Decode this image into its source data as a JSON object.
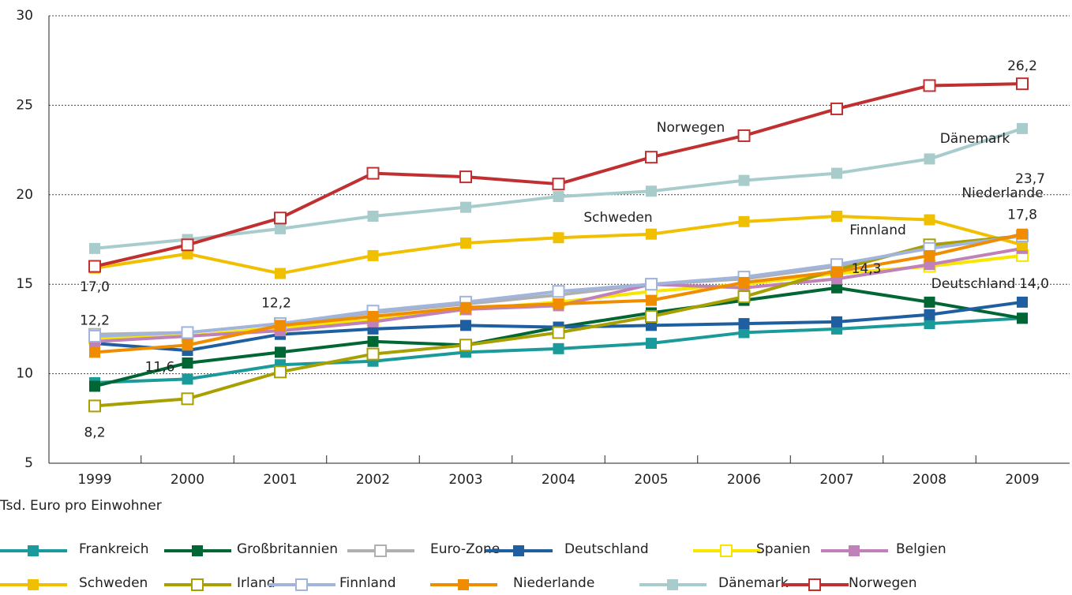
{
  "chart_data": {
    "type": "line",
    "categories": [
      "1999",
      "2000",
      "2001",
      "2002",
      "2003",
      "2004",
      "2005",
      "2006",
      "2007",
      "2008",
      "2009"
    ],
    "ylim": [
      5,
      30
    ],
    "yticks": [
      5,
      10,
      15,
      20,
      25,
      30
    ],
    "grid": true,
    "y_unit_label": "Tsd. Euro pro Einwohner",
    "annotations": [
      "Norwegen",
      "Dänemark",
      "Schweden",
      "Finnland",
      "Niederlande",
      "Deutschland"
    ],
    "series": [
      {
        "name": "Frankreich",
        "color": "#1a9a9a",
        "marker": "filled",
        "values": [
          9.5,
          9.7,
          10.5,
          10.7,
          11.2,
          11.4,
          11.7,
          12.3,
          12.5,
          12.8,
          13.1
        ]
      },
      {
        "name": "Großbritannien",
        "color": "#006633",
        "marker": "filled",
        "values": [
          9.3,
          10.6,
          11.2,
          11.8,
          11.6,
          12.6,
          13.4,
          14.1,
          14.8,
          14.0,
          13.1
        ]
      },
      {
        "name": "Euro-Zone",
        "color": "#b0b0b0",
        "marker": "hollow",
        "values": [
          12.2,
          12.3,
          12.8,
          13.4,
          13.9,
          14.4,
          15.0,
          15.3,
          16.0,
          17.1,
          17.7
        ],
        "value_labels": [
          "12,2",
          null,
          null,
          null,
          null,
          null,
          null,
          null,
          null,
          null,
          null
        ]
      },
      {
        "name": "Deutschland",
        "color": "#1f5fa0",
        "marker": "filled",
        "values": [
          11.7,
          11.3,
          12.2,
          12.5,
          12.7,
          12.6,
          12.7,
          12.8,
          12.9,
          13.3,
          14.0
        ],
        "value_labels": [
          null,
          null,
          "12,2",
          null,
          null,
          null,
          null,
          null,
          null,
          null,
          "14,0"
        ]
      },
      {
        "name": "Spanien",
        "color": "#f7e600",
        "marker": "hollow",
        "values": [
          12.0,
          12.1,
          12.6,
          13.0,
          13.6,
          14.0,
          14.6,
          15.0,
          15.6,
          16.0,
          16.6
        ]
      },
      {
        "name": "Belgien",
        "color": "#c080b8",
        "marker": "filled",
        "values": [
          11.8,
          12.1,
          12.4,
          12.9,
          13.6,
          13.8,
          15.0,
          14.8,
          15.3,
          16.1,
          17.0
        ]
      },
      {
        "name": "Schweden",
        "color": "#f0c000",
        "marker": "filled",
        "values": [
          15.9,
          16.7,
          15.6,
          16.6,
          17.3,
          17.6,
          17.8,
          18.5,
          18.8,
          18.6,
          17.2
        ]
      },
      {
        "name": "Irland",
        "color": "#a8a000",
        "marker": "hollow",
        "values": [
          8.2,
          8.6,
          10.1,
          11.1,
          11.6,
          12.3,
          13.2,
          14.3,
          15.8,
          17.2,
          17.7
        ],
        "value_labels": [
          "8,2",
          null,
          null,
          null,
          null,
          null,
          null,
          "14,3",
          null,
          null,
          null
        ]
      },
      {
        "name": "Finnland",
        "color": "#a0b4dc",
        "marker": "hollow",
        "values": [
          12.1,
          12.3,
          12.8,
          13.5,
          14.0,
          14.6,
          15.0,
          15.4,
          16.1,
          17.0,
          17.7
        ]
      },
      {
        "name": "Niederlande",
        "color": "#f08c00",
        "marker": "filled",
        "values": [
          11.2,
          11.6,
          12.7,
          13.2,
          13.7,
          13.9,
          14.1,
          15.1,
          15.7,
          16.6,
          17.8
        ],
        "value_labels": [
          null,
          "11,6",
          null,
          null,
          null,
          null,
          null,
          null,
          null,
          null,
          "17,8"
        ]
      },
      {
        "name": "Dänemark",
        "color": "#a8cccc",
        "marker": "filled",
        "values": [
          17.0,
          17.5,
          18.1,
          18.8,
          19.3,
          19.9,
          20.2,
          20.8,
          21.2,
          22.0,
          23.7
        ],
        "value_labels": [
          "17,0",
          null,
          null,
          null,
          null,
          null,
          null,
          null,
          null,
          null,
          "23,7"
        ]
      },
      {
        "name": "Norwegen",
        "color": "#c03030",
        "marker": "hollow",
        "values": [
          16.0,
          17.2,
          18.7,
          21.2,
          21.0,
          20.6,
          22.1,
          23.3,
          24.8,
          26.1,
          26.2
        ],
        "value_labels": [
          null,
          null,
          null,
          null,
          null,
          null,
          null,
          null,
          null,
          null,
          "26,2"
        ]
      }
    ]
  }
}
